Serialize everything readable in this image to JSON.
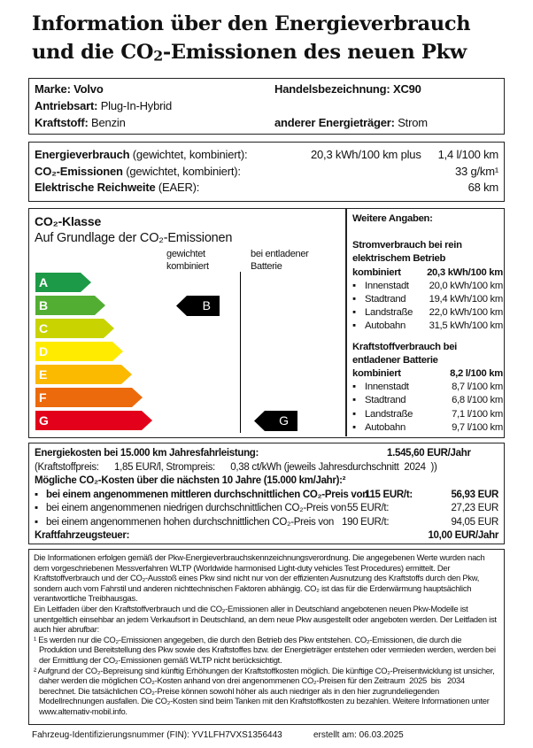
{
  "title": {
    "line1": "Information über den Energieverbrauch",
    "line2_pre": "und die CO",
    "line2_sub": "2",
    "line2_post": "-Emissionen des neuen Pkw"
  },
  "vehicle": {
    "marke_label": "Marke:",
    "marke": "Volvo",
    "handels_label": "Handelsbezeichnung:",
    "handels": "XC90",
    "antrieb_label": "Antriebsart:",
    "antrieb": "Plug-In-Hybrid",
    "kraftstoff_label": "Kraftstoff:",
    "kraftstoff": "Benzin",
    "energie_label": "anderer Energieträger:",
    "energie": "Strom"
  },
  "consumption": {
    "ev_label": "Energieverbrauch",
    "ev_note": "(gewichtet, kombiniert):",
    "ev_value": "20,3 kWh/100 km plus",
    "ev_value2": "1,4 l/100 km",
    "co2_label": "CO₂-Emissionen",
    "co2_note": "(gewichtet, kombiniert):",
    "co2_value": "33 g/km¹",
    "range_label": "Elektrische Reichweite",
    "range_note": "(EAER):",
    "range_value": "68 km"
  },
  "co2_class": {
    "title": "CO₂-Klasse",
    "subtitle": "Auf Grundlage der CO₂-Emissionen",
    "col1_l1": "gewichtet",
    "col1_l2": "kombiniert",
    "col2_l1": "bei entladener",
    "col2_l2": "Batterie",
    "classes": [
      {
        "label": "A",
        "color": "#1d9a47"
      },
      {
        "label": "B",
        "color": "#52ae32"
      },
      {
        "label": "C",
        "color": "#c8d300"
      },
      {
        "label": "D",
        "color": "#ffeb00"
      },
      {
        "label": "E",
        "color": "#fbb900"
      },
      {
        "label": "F",
        "color": "#ec6a0c"
      },
      {
        "label": "G",
        "color": "#e2001a"
      }
    ],
    "weighted_class": "B",
    "discharged_class": "G"
  },
  "further": {
    "title": "Weitere Angaben:",
    "elec_title1": "Stromverbrauch bei rein",
    "elec_title2": "elektrischem Betrieb",
    "elec_comb_label": "kombiniert",
    "elec_comb": "20,3 kWh/100 km",
    "elec": [
      {
        "label": "Innenstadt",
        "value": "20,0 kWh/100 km"
      },
      {
        "label": "Stadtrand",
        "value": "19,4 kWh/100 km"
      },
      {
        "label": "Landstraße",
        "value": "22,0 kWh/100 km"
      },
      {
        "label": "Autobahn",
        "value": "31,5 kWh/100 km"
      }
    ],
    "fuel_title1": "Kraftstoffverbrauch bei",
    "fuel_title2": "entladener Batterie",
    "fuel_comb_label": "kombiniert",
    "fuel_comb": "8,2 l/100 km",
    "fuel": [
      {
        "label": "Innenstadt",
        "value": "8,7 l/100 km"
      },
      {
        "label": "Stadtrand",
        "value": "6,8 l/100 km"
      },
      {
        "label": "Landstraße",
        "value": "7,1 l/100 km"
      },
      {
        "label": "Autobahn",
        "value": "9,7 l/100 km"
      }
    ]
  },
  "costs": {
    "energy_label": "Energiekosten bei 15.000 km Jahresfahrleistung:",
    "energy_value": "1.545,60 EUR/Jahr",
    "prices": "(Kraftstoffpreis:      1,85 EUR/l, Strompreis:      0,38 ct/kWh (jeweils Jahresdurchschnitt  2024  ))",
    "co2_title": "Mögliche CO₂-Kosten über die nächsten 10 Jahre (15.000 km/Jahr):²",
    "rows": [
      {
        "label": "bei einem angenommenen mittleren durchschnittlichen CO₂-Preis von",
        "price": "115 EUR/t:",
        "value": "56,93 EUR"
      },
      {
        "label": "bei einem angenommenen niedrigen durchschnittlichen CO₂-Preis von",
        "price": "55 EUR/t:",
        "value": "27,23 EUR"
      },
      {
        "label": "bei einem angenommenen hohen durchschnittlichen CO₂-Preis von",
        "price": "190 EUR/t:",
        "value": "94,05 EUR"
      }
    ],
    "tax_label": "Kraftfahrzeugsteuer:",
    "tax_value": "10,00 EUR/Jahr"
  },
  "info": {
    "p1": "Die Informationen erfolgen gemäß der Pkw-Energieverbrauchskennzeichnungsverordnung. Die angegebenen Werte wurden nach dem vorgeschriebenen Messverfahren WLTP (Worldwide harmonised Light-duty vehicles Test Procedures) ermittelt. Der Kraftstoffverbrauch und der CO₂-Ausstoß eines Pkw sind nicht nur von der effizienten Ausnutzung des Kraftstoffs durch den Pkw, sondern auch vom Fahrstil und anderen nichttechnischen Faktoren abhängig. CO₂ ist das für die Erderwärmung hauptsächlich verantwortliche Treibhausgas.",
    "p2": "Ein Leitfaden über den Kraftstoffverbrauch und die CO₂-Emissionen aller in Deutschland angebotenen neuen Pkw-Modelle ist unentgeltlich einsehbar an jedem Verkaufsort in Deutschland, an dem neue Pkw ausgestellt oder angeboten werden. Der Leitfaden ist auch hier abrufbar:",
    "f1": "¹ Es werden nur die CO₂-Emissionen angegeben, die durch den Betrieb des Pkw entstehen. CO₂-Emissionen, die durch die Produktion und Bereitstellung des Pkw sowie des Kraftstoffes bzw. der Energieträger entstehen oder vermieden werden, werden bei der Ermittlung der CO₂-Emissionen gemäß WLTP nicht berücksichtigt.",
    "f2": "² Aufgrund der CO₂-Bepreisung sind künftig Erhöhungen der Kraftstoffkosten möglich. Die künftige CO₂-Preisentwicklung ist unsicher, daher werden die möglichen CO₂-Kosten anhand von drei angenommenen CO₂-Preisen für den Zeitraum  2025  bis   2034   berechnet. Die tatsächlichen CO₂-Preise können sowohl höher als auch niedriger als in den hier zugrundeliegenden Modellrechnungen ausfallen. Die CO₂-Kosten sind beim Tanken mit den Kraftstoffkosten zu bezahlen. Weitere Informationen unter www.alternativ-mobil.info."
  },
  "footer": {
    "fin": "Fahrzeug-Identifizierungsnummer (FIN): YV1LFH7VXS1356443",
    "created": "erstellt am: 06.03.2025"
  }
}
